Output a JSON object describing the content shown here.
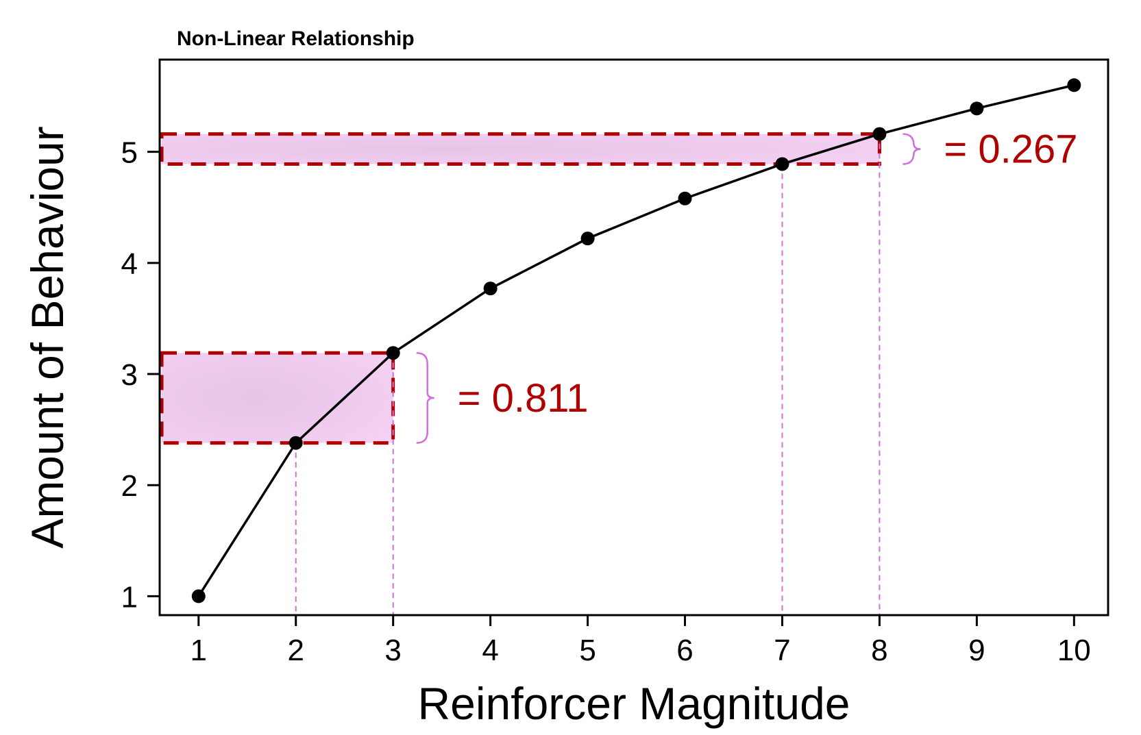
{
  "chart_data": {
    "type": "line",
    "title": "Non-Linear Relationship",
    "xlabel": "Reinforcer Magnitude",
    "ylabel": "Amount of Behaviour",
    "x": [
      1,
      2,
      3,
      4,
      5,
      6,
      7,
      8,
      9,
      10
    ],
    "series": [
      {
        "values": [
          1.0,
          2.38,
          3.19,
          3.77,
          4.22,
          4.58,
          4.89,
          5.16,
          5.39,
          5.6
        ]
      }
    ],
    "xlim": [
      0.6,
      10.35
    ],
    "ylim": [
      0.83,
      5.83
    ],
    "xticks": [
      1,
      2,
      3,
      4,
      5,
      6,
      7,
      8,
      9,
      10
    ],
    "yticks": [
      1,
      2,
      3,
      4,
      5
    ],
    "grid": false,
    "annotations": [
      {
        "x_from": 2,
        "x_to": 3,
        "y_from": 2.38,
        "y_to": 3.19,
        "label": "= 0.811"
      },
      {
        "x_from": 7,
        "x_to": 8,
        "y_from": 4.89,
        "y_to": 5.16,
        "label": "= 0.267"
      }
    ],
    "colors": {
      "line": "#000000",
      "highlight_fill": "#e9c2ea",
      "highlight_border": "#b00000",
      "guide": "#d070d8",
      "annotation_text": "#b00000"
    }
  }
}
